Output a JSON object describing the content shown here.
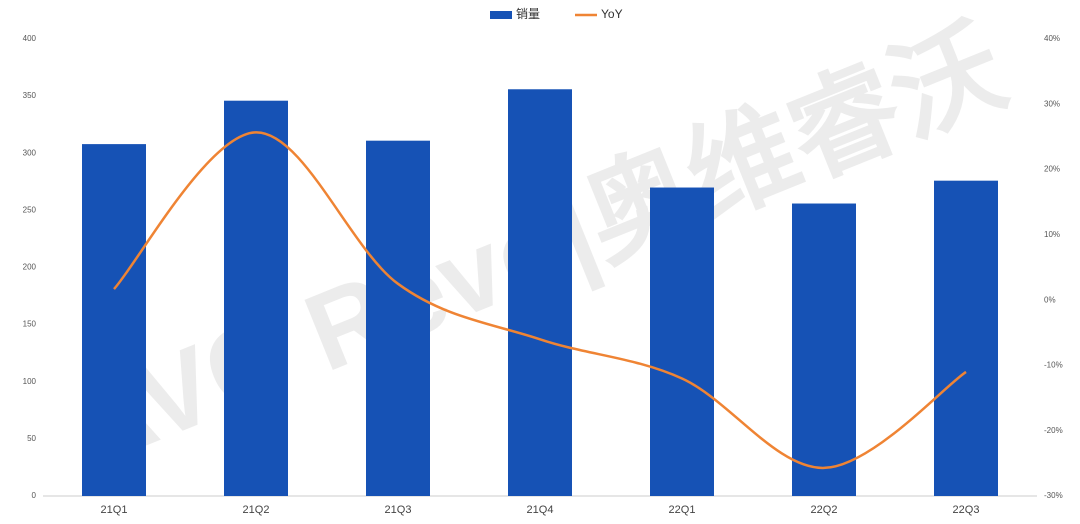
{
  "chart_data": {
    "type": "bar_line",
    "watermark": "AVC Revo|奥维睿沃",
    "categories": [
      "21Q1",
      "21Q2",
      "21Q3",
      "21Q4",
      "22Q1",
      "22Q2",
      "22Q3"
    ],
    "series": [
      {
        "name": "销量",
        "type": "bar",
        "color": "#1652b5",
        "values": [
          308,
          346,
          311,
          356,
          270,
          256,
          276
        ]
      },
      {
        "name": "YoY",
        "type": "line",
        "axis": "y2",
        "color": "#ef8434",
        "values": [
          1.7,
          25.7,
          2.5,
          -6,
          -12,
          -25.7,
          -11
        ]
      }
    ],
    "ylim": [
      0,
      400
    ],
    "yticks": [
      0,
      50,
      100,
      150,
      200,
      250,
      300,
      350,
      400
    ],
    "y2lim": [
      -30,
      40
    ],
    "y2ticks": [
      {
        "value": -30,
        "label": "-30%"
      },
      {
        "value": -20,
        "label": "-20%"
      },
      {
        "value": -10,
        "label": "-10%"
      },
      {
        "value": 0,
        "label": "0%"
      },
      {
        "value": 10,
        "label": "10%"
      },
      {
        "value": 20,
        "label": "20%"
      },
      {
        "value": 30,
        "label": "30%"
      },
      {
        "value": 40,
        "label": "40%"
      }
    ],
    "legend": "top"
  }
}
